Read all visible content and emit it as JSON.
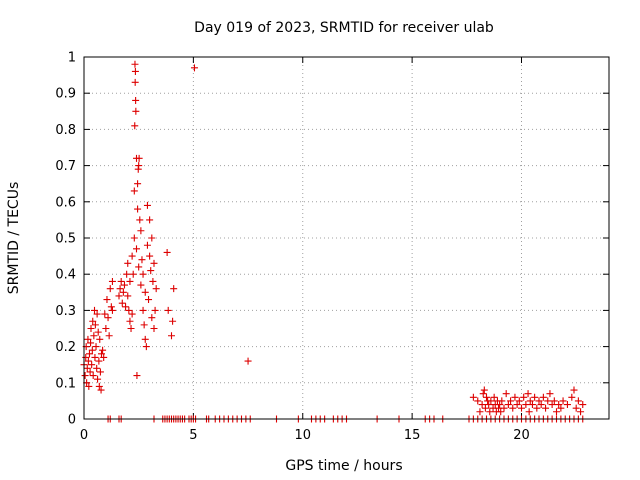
{
  "chart_data": {
    "type": "scatter",
    "title": "Day 019 of 2023, SRMTID for receiver ulab",
    "xlabel": "GPS time / hours",
    "ylabel": "SRMTID / TECUs",
    "xlim": [
      0,
      24
    ],
    "ylim": [
      0,
      1
    ],
    "xticks": [
      0,
      5,
      10,
      15,
      20
    ],
    "xtick_labels": [
      "0",
      "5",
      "10",
      "15",
      "20"
    ],
    "yticks": [
      0,
      0.1,
      0.2,
      0.3,
      0.4,
      0.5,
      0.6,
      0.7,
      0.8,
      0.9,
      1
    ],
    "ytick_labels": [
      "0",
      "0.1",
      "0.2",
      "0.3",
      "0.4",
      "0.5",
      "0.6",
      "0.7",
      "0.8",
      "0.9",
      "1"
    ],
    "grid": true,
    "marker": "+",
    "color": "#dd0000",
    "series": [
      {
        "name": "SRMTID",
        "points": [
          [
            0.0,
            0.15
          ],
          [
            0.05,
            0.12
          ],
          [
            0.08,
            0.17
          ],
          [
            0.1,
            0.2
          ],
          [
            0.12,
            0.1
          ],
          [
            0.15,
            0.14
          ],
          [
            0.18,
            0.22
          ],
          [
            0.2,
            0.16
          ],
          [
            0.22,
            0.09
          ],
          [
            0.25,
            0.18
          ],
          [
            0.28,
            0.13
          ],
          [
            0.3,
            0.21
          ],
          [
            0.32,
            0.25
          ],
          [
            0.35,
            0.15
          ],
          [
            0.38,
            0.19
          ],
          [
            0.4,
            0.27
          ],
          [
            0.42,
            0.12
          ],
          [
            0.45,
            0.23
          ],
          [
            0.48,
            0.3
          ],
          [
            0.5,
            0.17
          ],
          [
            0.52,
            0.26
          ],
          [
            0.55,
            0.2
          ],
          [
            0.58,
            0.14
          ],
          [
            0.6,
            0.29
          ],
          [
            0.62,
            0.11
          ],
          [
            0.65,
            0.24
          ],
          [
            0.68,
            0.16
          ],
          [
            0.7,
            0.09
          ],
          [
            0.72,
            0.22
          ],
          [
            0.75,
            0.13
          ],
          [
            0.78,
            0.08
          ],
          [
            0.8,
            0.18
          ],
          [
            0.85,
            0.19
          ],
          [
            0.9,
            0.17
          ],
          [
            0.95,
            0.29
          ],
          [
            1.0,
            0.25
          ],
          [
            1.05,
            0.33
          ],
          [
            1.1,
            0.28
          ],
          [
            1.15,
            0.23
          ],
          [
            1.2,
            0.36
          ],
          [
            1.25,
            0.31
          ],
          [
            1.3,
            0.38
          ],
          [
            1.3,
            0.3
          ],
          [
            1.6,
            0.34
          ],
          [
            1.65,
            0.36
          ],
          [
            1.7,
            0.38
          ],
          [
            1.75,
            0.32
          ],
          [
            1.8,
            0.35
          ],
          [
            1.85,
            0.37
          ],
          [
            1.9,
            0.31
          ],
          [
            1.95,
            0.4
          ],
          [
            2.0,
            0.34
          ],
          [
            2.0,
            0.43
          ],
          [
            2.05,
            0.3
          ],
          [
            2.1,
            0.27
          ],
          [
            2.1,
            0.38
          ],
          [
            2.15,
            0.25
          ],
          [
            2.2,
            0.29
          ],
          [
            2.2,
            0.45
          ],
          [
            2.25,
            0.4
          ],
          [
            2.3,
            0.5
          ],
          [
            2.3,
            0.63
          ],
          [
            2.32,
            0.81
          ],
          [
            2.33,
            0.98
          ],
          [
            2.34,
            0.93
          ],
          [
            2.35,
            0.96
          ],
          [
            2.36,
            0.88
          ],
          [
            2.37,
            0.85
          ],
          [
            2.4,
            0.72
          ],
          [
            2.4,
            0.47
          ],
          [
            2.42,
            0.12
          ],
          [
            2.45,
            0.58
          ],
          [
            2.45,
            0.65
          ],
          [
            2.48,
            0.69
          ],
          [
            2.5,
            0.7
          ],
          [
            2.5,
            0.42
          ],
          [
            2.52,
            0.72
          ],
          [
            2.55,
            0.55
          ],
          [
            2.6,
            0.52
          ],
          [
            2.6,
            0.37
          ],
          [
            2.65,
            0.44
          ],
          [
            2.7,
            0.4
          ],
          [
            2.7,
            0.3
          ],
          [
            2.75,
            0.26
          ],
          [
            2.8,
            0.35
          ],
          [
            2.8,
            0.22
          ],
          [
            2.85,
            0.2
          ],
          [
            2.9,
            0.59
          ],
          [
            2.9,
            0.48
          ],
          [
            2.95,
            0.33
          ],
          [
            3.0,
            0.55
          ],
          [
            3.0,
            0.45
          ],
          [
            3.05,
            0.41
          ],
          [
            3.1,
            0.5
          ],
          [
            3.1,
            0.28
          ],
          [
            3.15,
            0.38
          ],
          [
            3.2,
            0.43
          ],
          [
            3.2,
            0.25
          ],
          [
            3.25,
            0.3
          ],
          [
            3.3,
            0.36
          ],
          [
            3.8,
            0.46
          ],
          [
            3.85,
            0.3
          ],
          [
            4.0,
            0.23
          ],
          [
            4.05,
            0.27
          ],
          [
            4.1,
            0.36
          ],
          [
            5.05,
            0.97
          ],
          [
            7.5,
            0.16
          ],
          [
            17.8,
            0.06
          ],
          [
            18.0,
            0.05
          ],
          [
            18.1,
            0.02
          ],
          [
            18.2,
            0.04
          ],
          [
            18.25,
            0.07
          ],
          [
            18.3,
            0.08
          ],
          [
            18.35,
            0.03
          ],
          [
            18.4,
            0.06
          ],
          [
            18.45,
            0.05
          ],
          [
            18.5,
            0.04
          ],
          [
            18.55,
            0.02
          ],
          [
            18.6,
            0.05
          ],
          [
            18.7,
            0.03
          ],
          [
            18.75,
            0.06
          ],
          [
            18.8,
            0.04
          ],
          [
            18.85,
            0.02
          ],
          [
            18.9,
            0.05
          ],
          [
            18.95,
            0.03
          ],
          [
            19.0,
            0.04
          ],
          [
            19.05,
            0.02
          ],
          [
            19.1,
            0.05
          ],
          [
            19.2,
            0.03
          ],
          [
            19.3,
            0.07
          ],
          [
            19.4,
            0.04
          ],
          [
            19.5,
            0.05
          ],
          [
            19.6,
            0.03
          ],
          [
            19.7,
            0.06
          ],
          [
            19.8,
            0.04
          ],
          [
            19.9,
            0.05
          ],
          [
            20.0,
            0.03
          ],
          [
            20.1,
            0.06
          ],
          [
            20.2,
            0.04
          ],
          [
            20.3,
            0.07
          ],
          [
            20.35,
            0.02
          ],
          [
            20.4,
            0.05
          ],
          [
            20.5,
            0.04
          ],
          [
            20.6,
            0.06
          ],
          [
            20.7,
            0.03
          ],
          [
            20.8,
            0.05
          ],
          [
            20.9,
            0.04
          ],
          [
            21.0,
            0.06
          ],
          [
            21.1,
            0.03
          ],
          [
            21.2,
            0.05
          ],
          [
            21.3,
            0.07
          ],
          [
            21.4,
            0.04
          ],
          [
            21.5,
            0.05
          ],
          [
            21.6,
            0.02
          ],
          [
            21.7,
            0.04
          ],
          [
            21.8,
            0.03
          ],
          [
            21.9,
            0.05
          ],
          [
            22.1,
            0.04
          ],
          [
            22.3,
            0.06
          ],
          [
            22.4,
            0.08
          ],
          [
            22.5,
            0.03
          ],
          [
            22.6,
            0.05
          ],
          [
            22.7,
            0.02
          ],
          [
            22.8,
            0.04
          ]
        ],
        "zero_times": [
          1.1,
          1.2,
          1.6,
          1.7,
          3.2,
          3.6,
          3.7,
          3.8,
          3.9,
          4.0,
          4.1,
          4.2,
          4.3,
          4.4,
          4.5,
          4.6,
          4.8,
          4.9,
          5.0,
          5.1,
          5.6,
          5.7,
          6.0,
          6.2,
          6.4,
          6.6,
          6.8,
          7.0,
          7.2,
          7.4,
          7.6,
          8.8,
          9.8,
          10.4,
          10.6,
          10.8,
          11.0,
          11.4,
          11.6,
          11.8,
          12.0,
          13.4,
          14.4,
          15.6,
          15.8,
          16.0,
          16.4,
          17.6,
          17.8,
          18.0,
          18.2,
          18.4,
          18.6,
          18.8,
          19.0,
          19.2,
          19.4,
          19.6,
          19.8,
          20.0,
          20.2,
          20.4,
          20.6,
          20.8,
          21.0,
          21.2,
          21.4,
          21.6,
          21.8,
          22.0,
          22.2,
          22.4,
          22.6,
          22.8
        ]
      }
    ]
  }
}
